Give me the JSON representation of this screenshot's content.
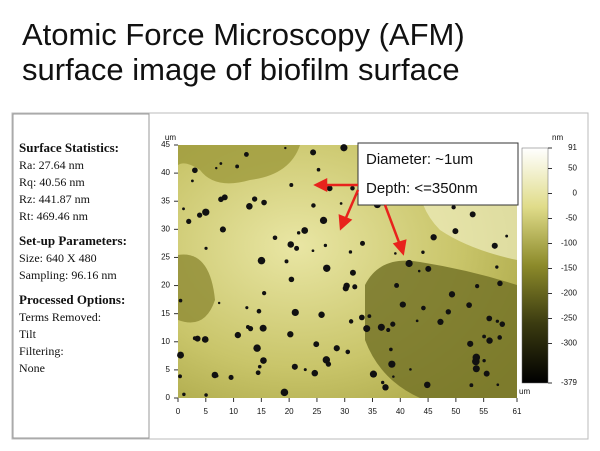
{
  "title": [
    "Atomic Force Microscopy (AFM)",
    "surface image of biofilm surface"
  ],
  "stats_panel": {
    "surface_statistics": {
      "heading": "Surface Statistics:",
      "lines": [
        "Ra:  27.64 nm",
        "Rq:  40.56 nm",
        "Rz:  441.87 nm",
        "Rt:  469.46 nm"
      ]
    },
    "setup_parameters": {
      "heading": "Set-up Parameters:",
      "lines": [
        "Size: 640 X 480",
        "Sampling:  96.16 nm"
      ]
    },
    "processed_options": {
      "heading": "Processed Options:",
      "lines": [
        "Terms Removed:",
        "Tilt",
        "Filtering:",
        "None"
      ]
    }
  },
  "afm_image": {
    "x_unit": "um",
    "y_unit": "um",
    "x_ticks": [
      0,
      5,
      10,
      15,
      20,
      25,
      30,
      35,
      40,
      45,
      50,
      55,
      61
    ],
    "y_ticks": [
      0,
      5,
      10,
      15,
      20,
      25,
      30,
      35,
      40,
      45
    ],
    "colorbar": {
      "unit": "nm",
      "ticks": [
        91,
        50,
        0,
        -50,
        -100,
        -150,
        -200,
        -250,
        -300,
        -379
      ]
    }
  },
  "annotation": [
    "Diameter:  ~1um",
    "Depth: <=350nm"
  ]
}
